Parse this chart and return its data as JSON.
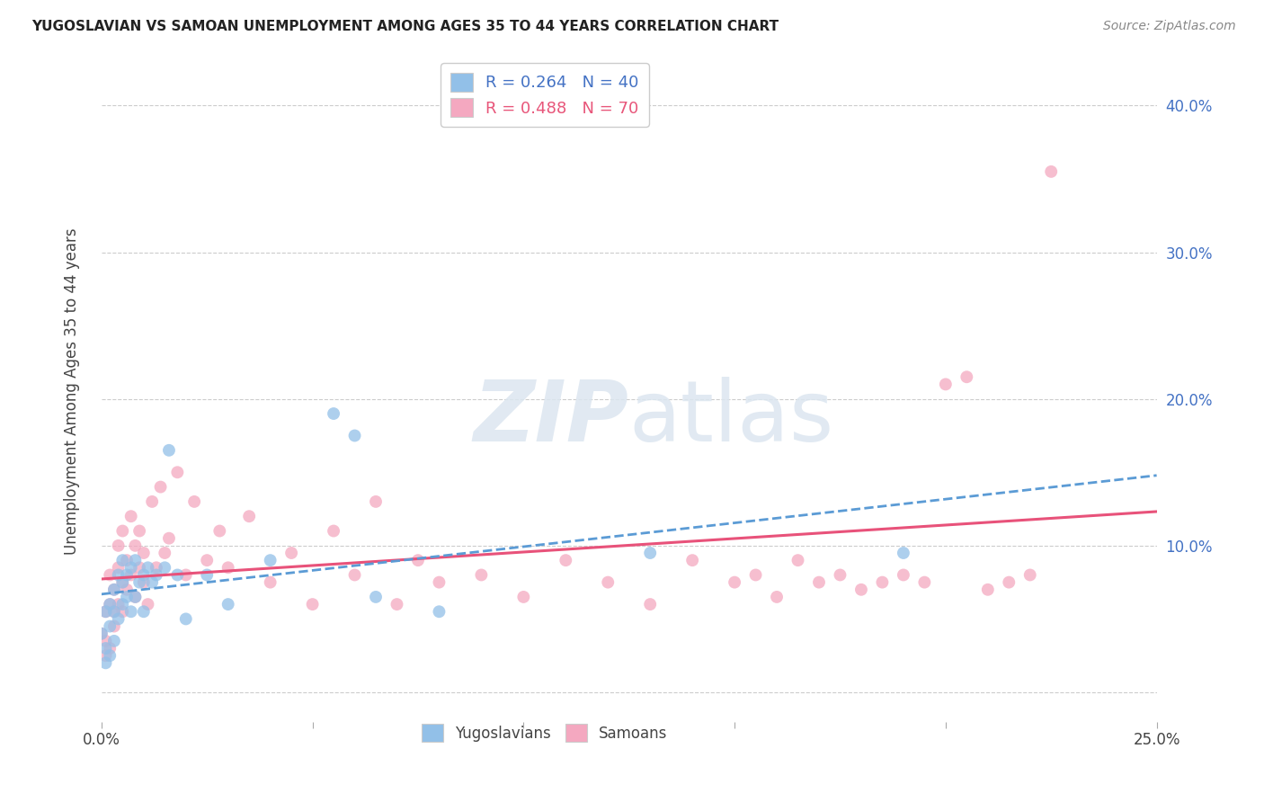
{
  "title": "YUGOSLAVIAN VS SAMOAN UNEMPLOYMENT AMONG AGES 35 TO 44 YEARS CORRELATION CHART",
  "source": "Source: ZipAtlas.com",
  "ylabel": "Unemployment Among Ages 35 to 44 years",
  "xlim": [
    0.0,
    0.25
  ],
  "ylim": [
    -0.02,
    0.43
  ],
  "background_color": "#ffffff",
  "grid_color": "#cccccc",
  "legend_R1": "R = 0.264",
  "legend_N1": "N = 40",
  "legend_R2": "R = 0.488",
  "legend_N2": "N = 70",
  "blue_color": "#92c0e8",
  "pink_color": "#f4a8c0",
  "blue_line_color": "#5b9bd5",
  "pink_line_color": "#e8527a",
  "yug_x": [
    0.0,
    0.001,
    0.001,
    0.001,
    0.002,
    0.002,
    0.002,
    0.003,
    0.003,
    0.003,
    0.004,
    0.004,
    0.005,
    0.005,
    0.005,
    0.006,
    0.006,
    0.007,
    0.007,
    0.008,
    0.008,
    0.009,
    0.01,
    0.01,
    0.011,
    0.012,
    0.013,
    0.015,
    0.016,
    0.018,
    0.02,
    0.025,
    0.03,
    0.04,
    0.055,
    0.06,
    0.065,
    0.08,
    0.13,
    0.19
  ],
  "yug_y": [
    0.04,
    0.055,
    0.03,
    0.02,
    0.06,
    0.045,
    0.025,
    0.07,
    0.055,
    0.035,
    0.08,
    0.05,
    0.075,
    0.06,
    0.09,
    0.08,
    0.065,
    0.085,
    0.055,
    0.09,
    0.065,
    0.075,
    0.08,
    0.055,
    0.085,
    0.075,
    0.08,
    0.085,
    0.165,
    0.08,
    0.05,
    0.08,
    0.06,
    0.09,
    0.19,
    0.175,
    0.065,
    0.055,
    0.095,
    0.095
  ],
  "sam_x": [
    0.0,
    0.001,
    0.001,
    0.001,
    0.002,
    0.002,
    0.002,
    0.003,
    0.003,
    0.003,
    0.004,
    0.004,
    0.004,
    0.005,
    0.005,
    0.005,
    0.006,
    0.006,
    0.007,
    0.007,
    0.008,
    0.008,
    0.009,
    0.009,
    0.01,
    0.01,
    0.011,
    0.012,
    0.013,
    0.014,
    0.015,
    0.016,
    0.018,
    0.02,
    0.022,
    0.025,
    0.028,
    0.03,
    0.035,
    0.04,
    0.045,
    0.05,
    0.055,
    0.06,
    0.065,
    0.07,
    0.075,
    0.08,
    0.09,
    0.1,
    0.11,
    0.12,
    0.13,
    0.14,
    0.15,
    0.155,
    0.16,
    0.165,
    0.17,
    0.175,
    0.18,
    0.185,
    0.19,
    0.195,
    0.2,
    0.205,
    0.21,
    0.215,
    0.22,
    0.225
  ],
  "sam_y": [
    0.04,
    0.055,
    0.025,
    0.035,
    0.06,
    0.08,
    0.03,
    0.07,
    0.055,
    0.045,
    0.085,
    0.06,
    0.1,
    0.075,
    0.055,
    0.11,
    0.09,
    0.07,
    0.12,
    0.08,
    0.1,
    0.065,
    0.085,
    0.11,
    0.075,
    0.095,
    0.06,
    0.13,
    0.085,
    0.14,
    0.095,
    0.105,
    0.15,
    0.08,
    0.13,
    0.09,
    0.11,
    0.085,
    0.12,
    0.075,
    0.095,
    0.06,
    0.11,
    0.08,
    0.13,
    0.06,
    0.09,
    0.075,
    0.08,
    0.065,
    0.09,
    0.075,
    0.06,
    0.09,
    0.075,
    0.08,
    0.065,
    0.09,
    0.075,
    0.08,
    0.07,
    0.075,
    0.08,
    0.075,
    0.21,
    0.215,
    0.07,
    0.075,
    0.08,
    0.355
  ]
}
